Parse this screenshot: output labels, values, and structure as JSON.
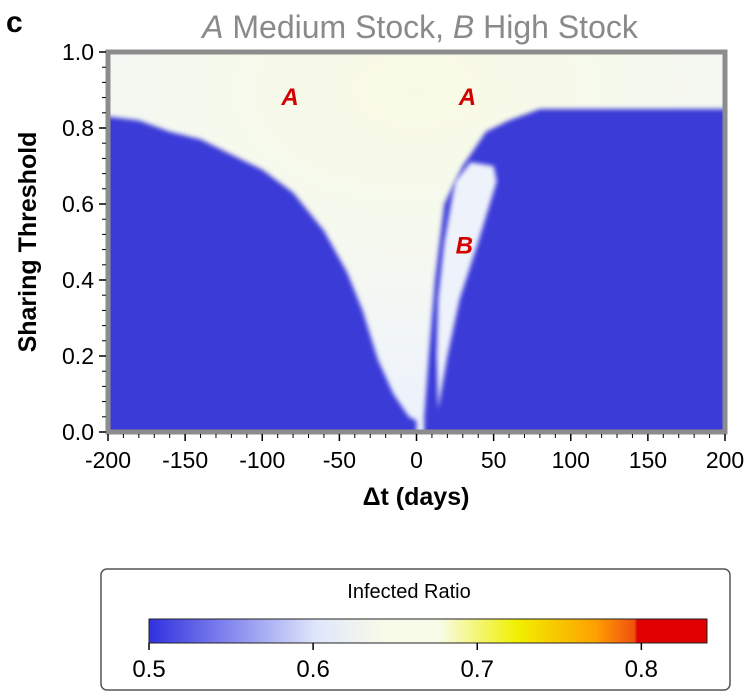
{
  "panel_letter": "c",
  "title": {
    "italic_a": "A",
    "part_a": " Medium Stock, ",
    "italic_b": "B",
    "part_b": " High Stock"
  },
  "colors": {
    "low": "#3a3ad8",
    "mid": "#f8fbe8",
    "frame": "#8c8c8c",
    "label_red": "#d40000"
  },
  "chart_data": {
    "type": "heatmap",
    "title": "A Medium Stock, B High Stock",
    "xlabel": "Δt (days)",
    "ylabel": "Sharing Threshold",
    "xlim": [
      -200,
      200
    ],
    "ylim": [
      0.0,
      1.0
    ],
    "x_ticks": [
      -200,
      -150,
      -100,
      -50,
      0,
      50,
      100,
      150,
      200
    ],
    "x_tick_labels": [
      "-200",
      "-150",
      "-100",
      "-50",
      "0",
      "50",
      "100",
      "150",
      "200"
    ],
    "y_ticks": [
      0.0,
      0.2,
      0.4,
      0.6,
      0.8,
      1.0
    ],
    "y_tick_labels": [
      "0.0",
      "0.2",
      "0.4",
      "0.6",
      "0.8",
      "1.0"
    ],
    "regions": [
      {
        "label": "A",
        "x": -82,
        "y": 0.86
      },
      {
        "label": "A",
        "x": 33,
        "y": 0.86
      },
      {
        "label": "B",
        "x": 31,
        "y": 0.47
      }
    ],
    "low_region_boundary_left": [
      [
        -200,
        0.83
      ],
      [
        -180,
        0.82
      ],
      [
        -160,
        0.79
      ],
      [
        -140,
        0.77
      ],
      [
        -120,
        0.73
      ],
      [
        -100,
        0.69
      ],
      [
        -80,
        0.63
      ],
      [
        -60,
        0.53
      ],
      [
        -45,
        0.42
      ],
      [
        -35,
        0.32
      ],
      [
        -25,
        0.19
      ],
      [
        -15,
        0.1
      ],
      [
        -5,
        0.04
      ],
      [
        0,
        0.03
      ]
    ],
    "low_region_boundary_right": [
      [
        5,
        0.04
      ],
      [
        8,
        0.2
      ],
      [
        12,
        0.4
      ],
      [
        18,
        0.6
      ],
      [
        30,
        0.7
      ],
      [
        45,
        0.79
      ],
      [
        60,
        0.82
      ],
      [
        80,
        0.85
      ],
      [
        120,
        0.85
      ],
      [
        200,
        0.85
      ]
    ],
    "b_region_outline": [
      [
        14,
        0.06
      ],
      [
        20,
        0.2
      ],
      [
        28,
        0.35
      ],
      [
        40,
        0.5
      ],
      [
        52,
        0.66
      ],
      [
        50,
        0.7
      ],
      [
        35,
        0.71
      ],
      [
        25,
        0.66
      ],
      [
        18,
        0.5
      ],
      [
        14,
        0.35
      ],
      [
        13,
        0.2
      ]
    ],
    "colorbar": {
      "title": "Infected Ratio",
      "range": [
        0.5,
        0.84
      ],
      "ticks": [
        0.5,
        0.6,
        0.7,
        0.8
      ],
      "tick_labels": [
        "0.5",
        "0.6",
        "0.7",
        "0.8"
      ],
      "colors": [
        "#3030e0",
        "#f8fbe8",
        "#f0f000",
        "#ff9000",
        "#e00000"
      ]
    }
  }
}
